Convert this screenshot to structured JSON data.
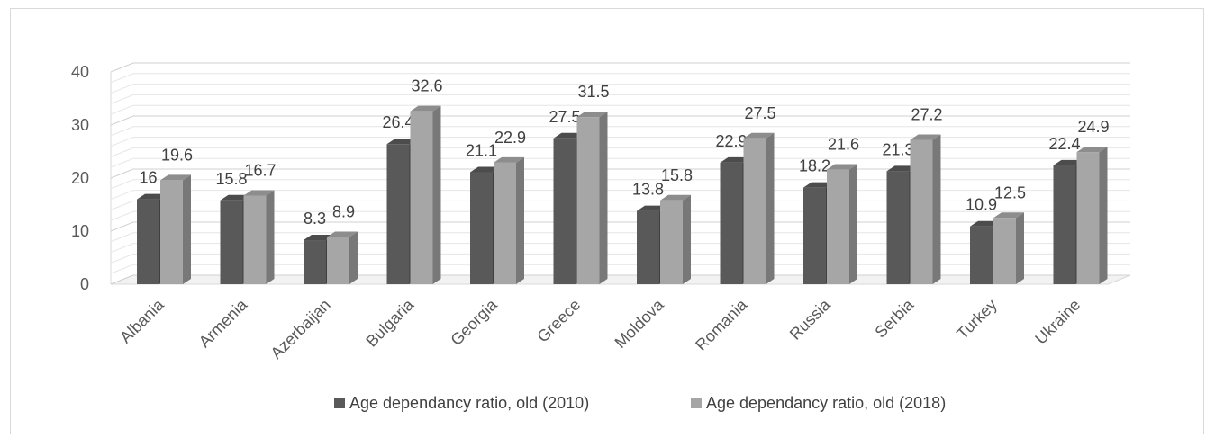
{
  "chart_data": {
    "type": "bar",
    "title": "",
    "xlabel": "",
    "ylabel": "",
    "ylim": [
      0,
      40
    ],
    "yticks": [
      0,
      10,
      20,
      30,
      40
    ],
    "grid": true,
    "legend_position": "bottom",
    "style": "3d-clustered-column",
    "categories": [
      "Albania",
      "Armenia",
      "Azerbaijan",
      "Bulgaria",
      "Georgia",
      "Greece",
      "Moldova",
      "Romania",
      "Russia",
      "Serbia",
      "Turkey",
      "Ukraine"
    ],
    "series": [
      {
        "name": "Age dependancy ratio, old (2010)",
        "color": "#595959",
        "values": [
          16,
          15.8,
          8.3,
          26.4,
          21.1,
          27.5,
          13.8,
          22.9,
          18.2,
          21.3,
          10.9,
          22.4
        ]
      },
      {
        "name": "Age dependancy ratio, old (2018)",
        "color": "#a6a6a6",
        "values": [
          19.6,
          16.7,
          8.9,
          32.6,
          22.9,
          31.5,
          15.8,
          27.5,
          21.6,
          27.2,
          12.5,
          24.9
        ]
      }
    ]
  }
}
